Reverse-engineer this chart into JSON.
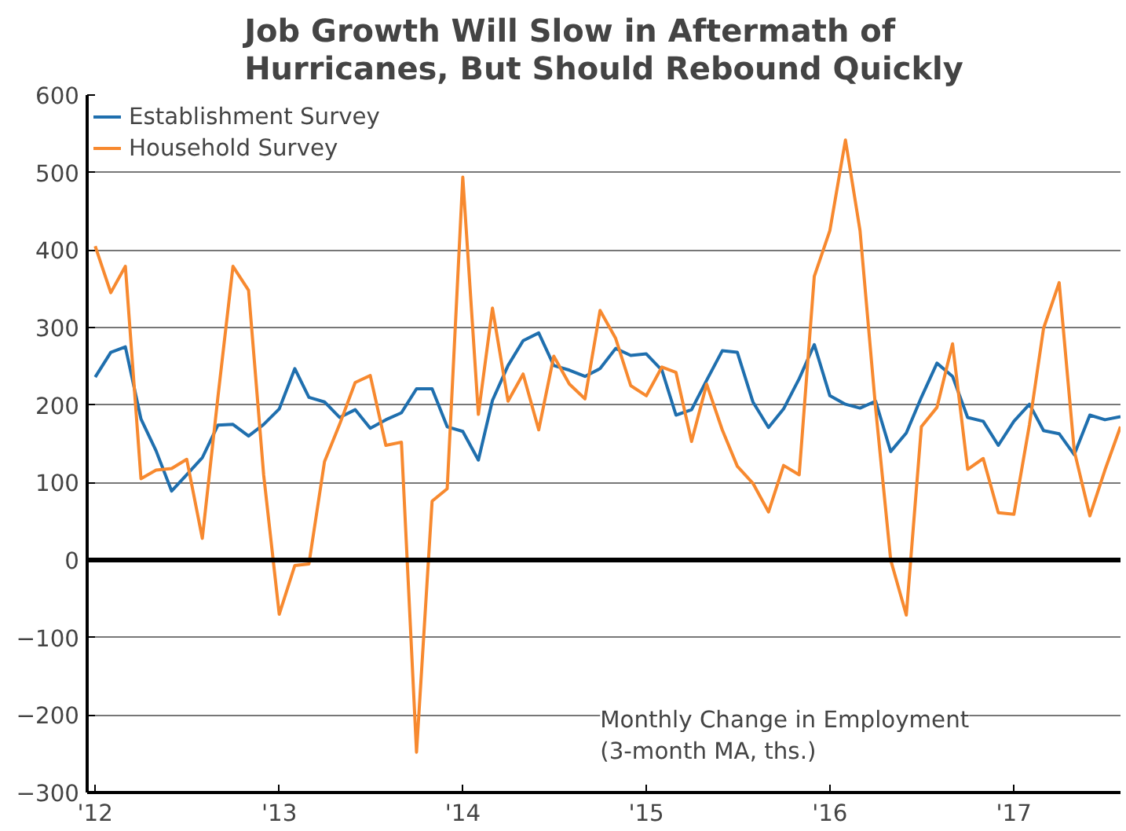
{
  "chart_data": {
    "type": "line",
    "title": "Job Growth Will Slow in Aftermath of\nHurricanes, But Should Rebound Quickly",
    "x": [
      "2012-01",
      "2012-02",
      "2012-03",
      "2012-04",
      "2012-05",
      "2012-06",
      "2012-07",
      "2012-08",
      "2012-09",
      "2012-10",
      "2012-11",
      "2012-12",
      "2013-01",
      "2013-02",
      "2013-03",
      "2013-04",
      "2013-05",
      "2013-06",
      "2013-07",
      "2013-08",
      "2013-09",
      "2013-10",
      "2013-11",
      "2013-12",
      "2014-01",
      "2014-02",
      "2014-03",
      "2014-04",
      "2014-05",
      "2014-06",
      "2014-07",
      "2014-08",
      "2014-09",
      "2014-10",
      "2014-11",
      "2014-12",
      "2015-01",
      "2015-02",
      "2015-03",
      "2015-04",
      "2015-05",
      "2015-06",
      "2015-07",
      "2015-08",
      "2015-09",
      "2015-10",
      "2015-11",
      "2015-12",
      "2016-01",
      "2016-02",
      "2016-03",
      "2016-04",
      "2016-05",
      "2016-06",
      "2016-07",
      "2016-08",
      "2016-09",
      "2016-10",
      "2016-11",
      "2016-12",
      "2017-01",
      "2017-02",
      "2017-03",
      "2017-04",
      "2017-05",
      "2017-06",
      "2017-07",
      "2017-08"
    ],
    "series": [
      {
        "name": "Establishment Survey",
        "color": "#1f6fae",
        "values": [
          236,
          268,
          275,
          182,
          141,
          89,
          110,
          132,
          174,
          175,
          160,
          175,
          195,
          247,
          210,
          204,
          184,
          194,
          170,
          181,
          190,
          221,
          221,
          172,
          166,
          129,
          206,
          251,
          283,
          293,
          251,
          245,
          237,
          247,
          273,
          264,
          266,
          245,
          187,
          194,
          232,
          270,
          268,
          204,
          171,
          195,
          234,
          278,
          212,
          201,
          196,
          205,
          140,
          164,
          210,
          254,
          237,
          184,
          179,
          148,
          179,
          201,
          167,
          163,
          136,
          187,
          181,
          185
        ]
      },
      {
        "name": "Household Survey",
        "color": "#f7892f",
        "values": [
          405,
          345,
          379,
          105,
          116,
          118,
          130,
          28,
          210,
          379,
          348,
          110,
          -70,
          -7,
          -5,
          127,
          175,
          229,
          238,
          148,
          152,
          -248,
          76,
          92,
          494,
          188,
          325,
          205,
          240,
          168,
          263,
          227,
          208,
          322,
          286,
          225,
          212,
          249,
          242,
          153,
          227,
          168,
          121,
          99,
          62,
          122,
          110,
          366,
          425,
          542,
          425,
          196,
          0,
          -71,
          172,
          197,
          279,
          117,
          131,
          61,
          59,
          175,
          299,
          358,
          141,
          57,
          116,
          172
        ]
      }
    ],
    "xlim": [
      "2011-12-16",
      "2017-08-01"
    ],
    "xticks": [
      {
        "value": "2012-01",
        "label": "'12"
      },
      {
        "value": "2013-01",
        "label": "'13"
      },
      {
        "value": "2014-01",
        "label": "'14"
      },
      {
        "value": "2015-01",
        "label": "'15"
      },
      {
        "value": "2016-01",
        "label": "'16"
      },
      {
        "value": "2017-01",
        "label": "'17"
      }
    ],
    "ylim": [
      -300,
      600
    ],
    "yticks": [
      -300,
      -200,
      -100,
      0,
      100,
      200,
      300,
      400,
      500,
      600
    ],
    "ref_lines": [
      {
        "axis": "y",
        "value": 0,
        "label": null,
        "color": "#000000"
      }
    ],
    "annotations": [
      "Monthly Change in Employment\n(3-month MA, ths.)"
    ],
    "grid": "y",
    "legend": "top left",
    "marker": "none",
    "line_style": "solid"
  }
}
